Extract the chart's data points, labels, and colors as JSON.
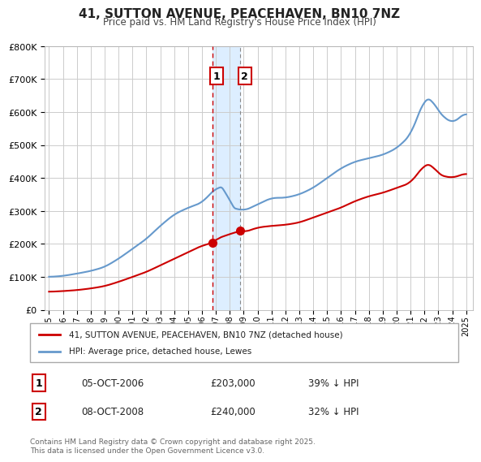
{
  "title": "41, SUTTON AVENUE, PEACEHAVEN, BN10 7NZ",
  "subtitle": "Price paid vs. HM Land Registry's House Price Index (HPI)",
  "red_label": "41, SUTTON AVENUE, PEACEHAVEN, BN10 7NZ (detached house)",
  "blue_label": "HPI: Average price, detached house, Lewes",
  "transaction1_date": "05-OCT-2006",
  "transaction1_price": 203000,
  "transaction1_hpi": "39% ↓ HPI",
  "transaction2_date": "08-OCT-2008",
  "transaction2_price": 240000,
  "transaction2_hpi": "32% ↓ HPI",
  "transaction1_x": 2006.76,
  "transaction2_x": 2008.77,
  "shade_start": 2006.76,
  "shade_end": 2008.77,
  "footer": "Contains HM Land Registry data © Crown copyright and database right 2025.\nThis data is licensed under the Open Government Licence v3.0.",
  "red_color": "#cc0000",
  "blue_color": "#6699cc",
  "background_color": "#ffffff",
  "grid_color": "#cccccc",
  "shade_color": "#ddeeff",
  "ylim": [
    0,
    800000
  ],
  "xlim_start": 1995,
  "xlim_end": 2025.5
}
